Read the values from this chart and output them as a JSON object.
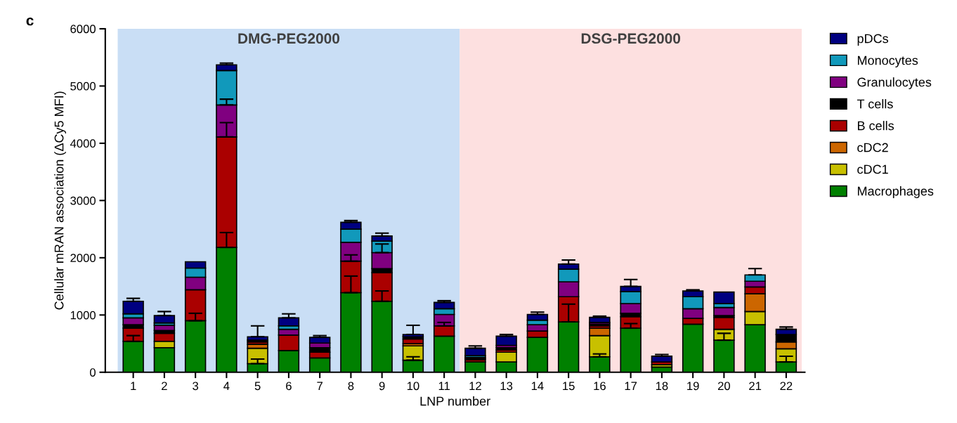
{
  "chart_data": {
    "type": "bar",
    "stacked": true,
    "title": "c",
    "xlabel": "LNP number",
    "ylabel": "Cellular mRAN association (ΔCy5 MFI)",
    "categories": [
      "1",
      "2",
      "3",
      "4",
      "5",
      "6",
      "7",
      "8",
      "9",
      "10",
      "11",
      "12",
      "13",
      "14",
      "15",
      "16",
      "17",
      "18",
      "19",
      "20",
      "21",
      "22"
    ],
    "ylim": [
      0,
      6000
    ],
    "yticks": [
      0,
      1000,
      2000,
      3000,
      4000,
      5000,
      6000
    ],
    "grid": false,
    "legend": "right",
    "bands": [
      {
        "axis": "x",
        "from": "1",
        "to": "11",
        "label": "DMG-PEG2000",
        "color": "#c9def5"
      },
      {
        "axis": "x",
        "from": "12",
        "to": "22",
        "label": "DSG-PEG2000",
        "color": "#fde0e0"
      }
    ],
    "series": [
      {
        "name": "Macrophages",
        "color": "#008000",
        "values": [
          540,
          430,
          900,
          2180,
          150,
          380,
          250,
          1390,
          1240,
          210,
          630,
          180,
          180,
          610,
          880,
          270,
          770,
          90,
          840,
          560,
          830,
          180
        ],
        "errors": [
          100,
          null,
          130,
          260,
          80,
          null,
          null,
          290,
          180,
          60,
          null,
          null,
          null,
          null,
          310,
          50,
          80,
          null,
          null,
          120,
          null,
          100
        ]
      },
      {
        "name": "cDC1",
        "color": "#c8c000",
        "values": [
          0,
          110,
          0,
          0,
          270,
          0,
          0,
          0,
          0,
          250,
          0,
          0,
          170,
          0,
          0,
          370,
          0,
          40,
          0,
          190,
          230,
          230
        ]
      },
      {
        "name": "cDC2",
        "color": "#cc6600",
        "values": [
          0,
          0,
          0,
          0,
          70,
          0,
          0,
          null,
          0,
          40,
          0,
          0,
          0,
          0,
          0,
          130,
          0,
          0,
          0,
          0,
          310,
          120
        ]
      },
      {
        "name": "B cells",
        "color": "#aa0000",
        "values": [
          230,
          140,
          540,
          1930,
          40,
          270,
          100,
          550,
          500,
          80,
          180,
          40,
          40,
          110,
          440,
          40,
          200,
          50,
          100,
          210,
          120,
          0
        ],
        "errors": [
          null,
          null,
          null,
          250,
          null,
          null,
          null,
          110,
          null,
          null,
          60,
          null,
          null,
          null,
          null,
          null,
          null,
          null,
          null,
          null,
          null,
          null
        ]
      },
      {
        "name": "T cells",
        "color": "#000000",
        "values": [
          60,
          50,
          null,
          0,
          30,
          0,
          80,
          null,
          70,
          40,
          0,
          20,
          40,
          0,
          0,
          30,
          60,
          0,
          0,
          30,
          0,
          130
        ]
      },
      {
        "name": "Granulocytes",
        "color": "#800080",
        "values": [
          120,
          90,
          220,
          560,
          0,
          100,
          80,
          330,
          280,
          0,
          200,
          20,
          40,
          110,
          260,
          30,
          170,
          0,
          170,
          140,
          100,
          0
        ],
        "errors": [
          null,
          null,
          null,
          100,
          null,
          null,
          null,
          null,
          150,
          null,
          null,
          null,
          null,
          null,
          null,
          null,
          null,
          null,
          null,
          null,
          null,
          null
        ]
      },
      {
        "name": "Monocytes",
        "color": "#1199bb",
        "values": [
          70,
          40,
          160,
          600,
          0,
          60,
          0,
          230,
          200,
          0,
          100,
          30,
          null,
          80,
          220,
          0,
          210,
          0,
          210,
          70,
          110,
          0
        ],
        "errors": [
          null,
          null,
          null,
          null,
          null,
          null,
          null,
          null,
          null,
          null,
          null,
          null,
          null,
          null,
          null,
          null,
          null,
          null,
          null,
          null,
          110,
          null
        ]
      },
      {
        "name": "pDCs",
        "color": "#000080",
        "values": [
          220,
          130,
          110,
          100,
          60,
          140,
          100,
          120,
          90,
          40,
          110,
          130,
          160,
          100,
          90,
          90,
          90,
          100,
          100,
          200,
          0,
          90
        ],
        "errors": [
          50,
          70,
          null,
          30,
          190,
          70,
          30,
          30,
          50,
          160,
          30,
          40,
          30,
          40,
          70,
          20,
          120,
          30,
          20,
          null,
          null,
          40
        ]
      }
    ]
  }
}
